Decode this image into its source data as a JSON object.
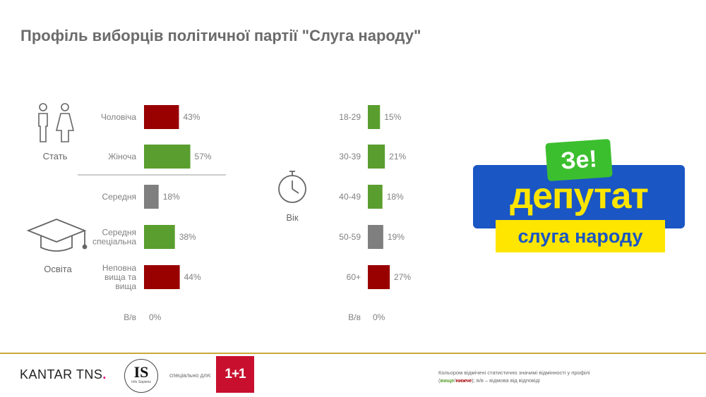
{
  "title": "Профіль виборців політичної партії \"Слуга народу\"",
  "colors": {
    "high": "#990000",
    "low": "#5a9e2f",
    "neutral": "#7f7f7f"
  },
  "chart_data": [
    {
      "type": "bar",
      "group": "gender",
      "icon_label": "Стать",
      "icon": "male-female-icon",
      "categories": [
        "Чоловіча",
        "Жіноча"
      ],
      "values": [
        43,
        57
      ],
      "value_labels": [
        "43%",
        "57%"
      ],
      "colors": [
        "high",
        "low"
      ]
    },
    {
      "type": "bar",
      "group": "education",
      "icon_label": "Освіта",
      "icon": "graduation-cap-icon",
      "categories": [
        "Середня",
        "Середня\nспеціальна",
        "Неповна\nвища та\nвища",
        "В/в"
      ],
      "values": [
        18,
        38,
        44,
        0
      ],
      "value_labels": [
        "18%",
        "38%",
        "44%",
        "0%"
      ],
      "colors": [
        "neutral",
        "low",
        "high",
        "neutral"
      ]
    },
    {
      "type": "bar",
      "group": "age",
      "icon_label": "Вік",
      "icon": "stopwatch-icon",
      "categories": [
        "18-29",
        "30-39",
        "40-49",
        "50-59",
        "60+",
        "В/в"
      ],
      "values": [
        15,
        21,
        18,
        19,
        27,
        0
      ],
      "value_labels": [
        "15%",
        "21%",
        "18%",
        "19%",
        "27%",
        "0%"
      ],
      "colors": [
        "low",
        "low",
        "low",
        "neutral",
        "high",
        "neutral"
      ]
    }
  ],
  "poster": {
    "badge": "Зе!",
    "main": "депутат",
    "sub": "слуга народу"
  },
  "footer": {
    "kantar_a": "KANTAR",
    "kantar_b": "TNS",
    "kantar_dot": ".",
    "is_big": "IS",
    "is_small": "Info Sapiens",
    "special": "спеціально для:",
    "tv": "1+1",
    "note_line1": "Кольором відмічені статистично значимі відмінності у профілі",
    "note_open": "(",
    "note_hi": "вище",
    "note_slash": "/",
    "note_lo": "нижче",
    "note_rest": "); в/в – відмова від відповіді"
  }
}
